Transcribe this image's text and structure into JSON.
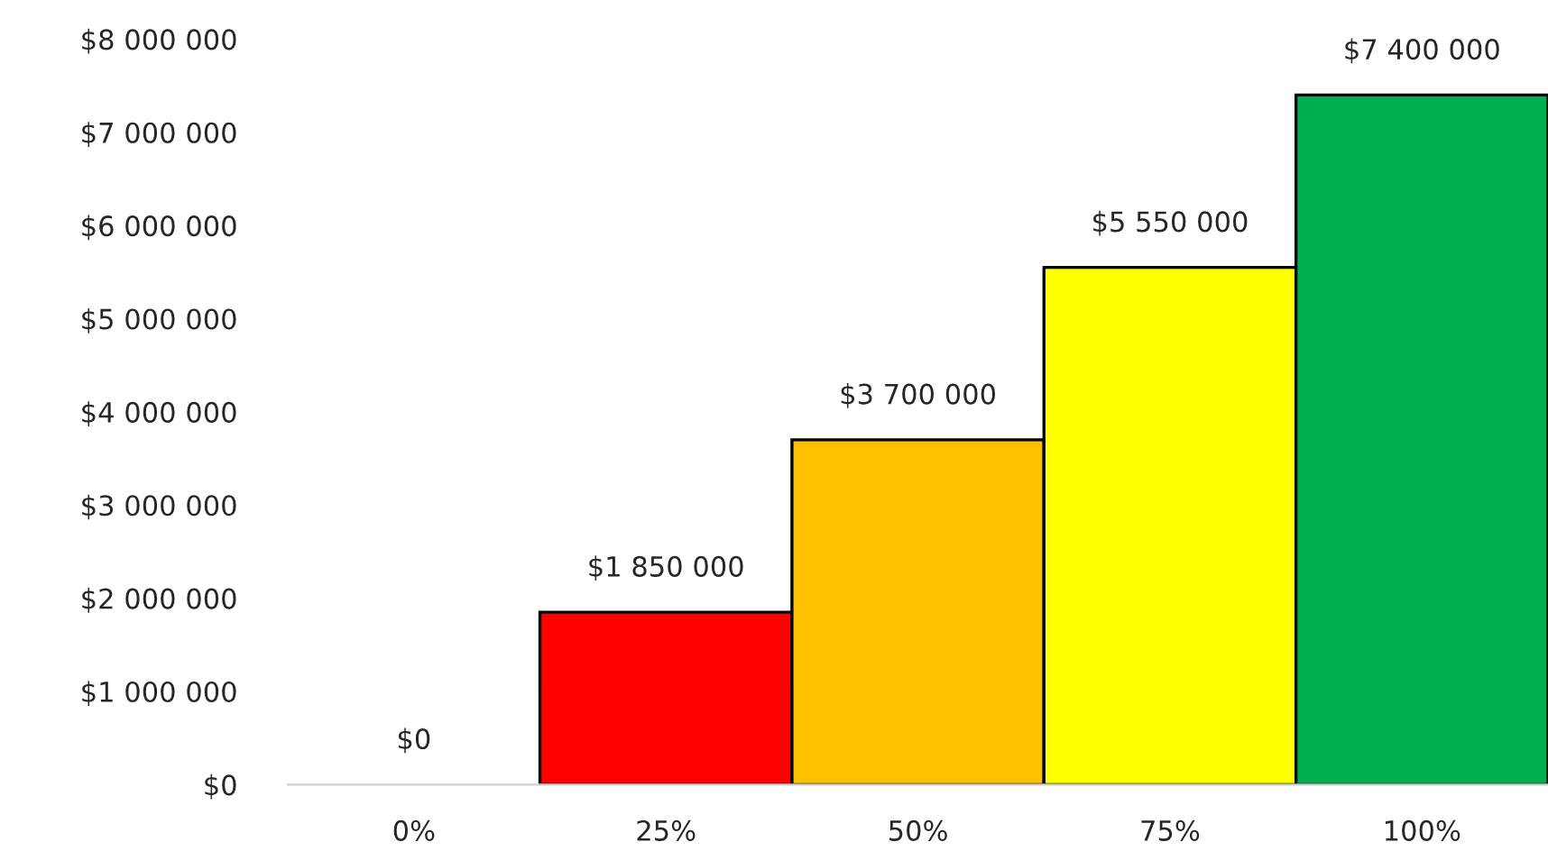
{
  "chart_data": {
    "type": "bar",
    "categories": [
      "0%",
      "25%",
      "50%",
      "75%",
      "100%"
    ],
    "values": [
      0,
      1850000,
      3700000,
      5550000,
      7400000
    ],
    "colors": [
      "#ffffff",
      "#ff0000",
      "#ffc000",
      "#ffff00",
      "#00b050"
    ],
    "value_labels": [
      "$0",
      "$1 850 000",
      "$3 700 000",
      "$5 550 000",
      "$7 400 000"
    ],
    "ylim": [
      0,
      8000000
    ],
    "yticks": [
      {
        "value": 0,
        "label": "$0"
      },
      {
        "value": 1000000,
        "label": "$1 000 000"
      },
      {
        "value": 2000000,
        "label": "$2 000 000"
      },
      {
        "value": 3000000,
        "label": "$3 000 000"
      },
      {
        "value": 4000000,
        "label": "$4 000 000"
      },
      {
        "value": 5000000,
        "label": "$5 000 000"
      },
      {
        "value": 6000000,
        "label": "$6 000 000"
      },
      {
        "value": 7000000,
        "label": "$7 000 000"
      },
      {
        "value": 8000000,
        "label": "$8 000 000"
      }
    ],
    "grid": false,
    "legend": false
  }
}
